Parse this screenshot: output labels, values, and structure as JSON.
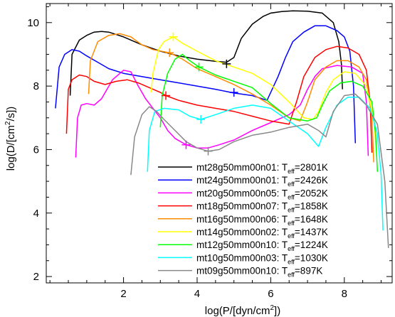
{
  "chart_data": {
    "type": "line",
    "xlabel_main": "log(P/[dyn/cm",
    "xlabel_sup": "2",
    "xlabel_end": "])",
    "ylabel_main": "log(D/[cm",
    "ylabel_sup": "2",
    "ylabel_end": "/s])",
    "xlim": [
      -0.1,
      9.3
    ],
    "ylim": [
      1.8,
      10.6
    ],
    "xticks": [
      2,
      4,
      6,
      8
    ],
    "yticks": [
      2,
      4,
      6,
      8,
      10
    ],
    "grid": false,
    "legend_placement": "bottom-right",
    "series": [
      {
        "name": "mt28g50mm00n01",
        "teff": "2801K",
        "color": "#000000",
        "marker": [
          4.8,
          8.7
        ],
        "points": [
          [
            0.55,
            7.7
          ],
          [
            0.6,
            9.0
          ],
          [
            0.8,
            9.45
          ],
          [
            1.0,
            9.6
          ],
          [
            1.2,
            9.7
          ],
          [
            1.4,
            9.72
          ],
          [
            1.6,
            9.7
          ],
          [
            2.0,
            9.55
          ],
          [
            2.5,
            9.3
          ],
          [
            3.0,
            9.1
          ],
          [
            3.5,
            8.95
          ],
          [
            4.0,
            8.85
          ],
          [
            4.5,
            8.78
          ],
          [
            4.8,
            8.75
          ],
          [
            5.0,
            8.9
          ],
          [
            5.2,
            9.5
          ],
          [
            5.5,
            9.95
          ],
          [
            5.8,
            10.2
          ],
          [
            6.0,
            10.3
          ],
          [
            6.3,
            10.35
          ],
          [
            6.6,
            10.37
          ],
          [
            7.0,
            10.36
          ],
          [
            7.4,
            10.3
          ],
          [
            7.7,
            10.0
          ],
          [
            7.85,
            9.4
          ],
          [
            7.92,
            8.7
          ],
          [
            7.95,
            7.9
          ]
        ]
      },
      {
        "name": "mt24g50mm00n01",
        "teff": "2426K",
        "color": "#0000ff",
        "marker": [
          5.0,
          7.8
        ],
        "points": [
          [
            0.15,
            7.3
          ],
          [
            0.25,
            8.6
          ],
          [
            0.4,
            9.0
          ],
          [
            0.6,
            9.15
          ],
          [
            0.8,
            9.1
          ],
          [
            1.0,
            8.95
          ],
          [
            1.3,
            8.75
          ],
          [
            1.6,
            8.55
          ],
          [
            2.0,
            8.4
          ],
          [
            2.5,
            8.3
          ],
          [
            3.0,
            8.2
          ],
          [
            3.5,
            8.1
          ],
          [
            4.0,
            8.0
          ],
          [
            4.5,
            7.9
          ],
          [
            5.0,
            7.78
          ],
          [
            5.5,
            7.7
          ],
          [
            5.9,
            7.55
          ],
          [
            6.2,
            8.3
          ],
          [
            6.4,
            8.9
          ],
          [
            6.6,
            9.4
          ],
          [
            6.9,
            9.7
          ],
          [
            7.2,
            9.9
          ],
          [
            7.5,
            9.9
          ],
          [
            7.8,
            9.75
          ],
          [
            8.0,
            9.55
          ],
          [
            8.15,
            9.1
          ],
          [
            8.25,
            8.0
          ],
          [
            8.3,
            6.2
          ]
        ]
      },
      {
        "name": "mt20g50mm00n05",
        "teff": "2052K",
        "color": "#ff00ff",
        "marker": [
          3.7,
          6.15
        ],
        "points": [
          [
            0.7,
            5.75
          ],
          [
            0.75,
            7.0
          ],
          [
            0.85,
            7.4
          ],
          [
            1.0,
            7.45
          ],
          [
            1.2,
            7.4
          ],
          [
            1.4,
            7.6
          ],
          [
            1.7,
            8.2
          ],
          [
            2.0,
            8.5
          ],
          [
            2.2,
            8.45
          ],
          [
            2.4,
            8.0
          ],
          [
            2.6,
            7.6
          ],
          [
            2.8,
            7.3
          ],
          [
            3.0,
            7.0
          ],
          [
            3.2,
            6.6
          ],
          [
            3.4,
            6.35
          ],
          [
            3.7,
            6.15
          ],
          [
            4.0,
            6.05
          ],
          [
            4.3,
            6.05
          ],
          [
            4.6,
            6.15
          ],
          [
            5.0,
            6.3
          ],
          [
            5.5,
            6.6
          ],
          [
            6.0,
            6.85
          ],
          [
            6.5,
            7.1
          ],
          [
            6.8,
            7.4
          ],
          [
            7.0,
            7.9
          ],
          [
            7.2,
            8.3
          ],
          [
            7.4,
            8.55
          ],
          [
            7.8,
            8.65
          ],
          [
            8.2,
            8.6
          ],
          [
            8.5,
            8.4
          ],
          [
            8.6,
            7.5
          ],
          [
            8.65,
            5.8
          ]
        ]
      },
      {
        "name": "mt18g50mm00n07",
        "teff": "1858K",
        "color": "#ff0000",
        "marker": [
          3.15,
          7.7
        ],
        "points": [
          [
            0.45,
            6.5
          ],
          [
            0.5,
            7.9
          ],
          [
            0.6,
            8.2
          ],
          [
            0.8,
            8.35
          ],
          [
            1.0,
            8.3
          ],
          [
            1.2,
            8.15
          ],
          [
            1.5,
            8.05
          ],
          [
            1.8,
            8.15
          ],
          [
            2.1,
            8.2
          ],
          [
            2.4,
            8.1
          ],
          [
            2.7,
            7.95
          ],
          [
            3.0,
            7.8
          ],
          [
            3.15,
            7.7
          ],
          [
            3.5,
            7.55
          ],
          [
            4.0,
            7.4
          ],
          [
            4.5,
            7.3
          ],
          [
            5.0,
            7.2
          ],
          [
            5.5,
            7.05
          ],
          [
            6.0,
            6.9
          ],
          [
            6.5,
            6.8
          ],
          [
            6.7,
            7.5
          ],
          [
            6.9,
            8.3
          ],
          [
            7.2,
            8.9
          ],
          [
            7.5,
            9.15
          ],
          [
            7.8,
            9.25
          ],
          [
            8.1,
            9.2
          ],
          [
            8.4,
            9.0
          ],
          [
            8.6,
            8.5
          ],
          [
            8.7,
            7.5
          ],
          [
            8.75,
            5.9
          ]
        ]
      },
      {
        "name": "mt16g50mm00n06",
        "teff": "1648K",
        "color": "#ff8c00",
        "marker": [
          3.25,
          9.05
        ],
        "points": [
          [
            1.05,
            7.75
          ],
          [
            1.1,
            8.8
          ],
          [
            1.3,
            9.4
          ],
          [
            1.6,
            9.6
          ],
          [
            1.9,
            9.65
          ],
          [
            2.2,
            9.55
          ],
          [
            2.5,
            9.3
          ],
          [
            2.8,
            9.15
          ],
          [
            3.25,
            9.05
          ],
          [
            3.6,
            8.85
          ],
          [
            4.0,
            8.55
          ],
          [
            4.5,
            8.3
          ],
          [
            5.0,
            8.05
          ],
          [
            5.5,
            7.75
          ],
          [
            6.0,
            7.4
          ],
          [
            6.5,
            7.0
          ],
          [
            6.8,
            6.9
          ],
          [
            7.0,
            7.5
          ],
          [
            7.2,
            8.2
          ],
          [
            7.5,
            8.6
          ],
          [
            7.8,
            8.8
          ],
          [
            8.1,
            8.8
          ],
          [
            8.4,
            8.6
          ],
          [
            8.6,
            8.2
          ],
          [
            8.75,
            7.0
          ],
          [
            8.8,
            5.6
          ]
        ]
      },
      {
        "name": "mt14g50mm00n02",
        "teff": "1437K",
        "color": "#ffff00",
        "marker": [
          3.35,
          9.55
        ],
        "points": [
          [
            2.75,
            7.8
          ],
          [
            2.8,
            8.4
          ],
          [
            2.95,
            9.15
          ],
          [
            3.1,
            9.4
          ],
          [
            3.35,
            9.55
          ],
          [
            3.6,
            9.35
          ],
          [
            4.0,
            9.1
          ],
          [
            4.5,
            8.8
          ],
          [
            5.0,
            8.6
          ],
          [
            5.5,
            8.4
          ],
          [
            6.0,
            8.05
          ],
          [
            6.5,
            7.5
          ],
          [
            6.9,
            7.0
          ],
          [
            7.15,
            6.95
          ],
          [
            7.3,
            7.2
          ],
          [
            7.5,
            7.8
          ],
          [
            7.7,
            8.2
          ],
          [
            8.0,
            8.45
          ],
          [
            8.3,
            8.4
          ],
          [
            8.6,
            8.0
          ],
          [
            8.8,
            7.0
          ],
          [
            8.88,
            5.8
          ]
        ]
      },
      {
        "name": "mt12g50mm00n10",
        "teff": "1224K",
        "color": "#00ff00",
        "marker": [
          4.05,
          8.6
        ],
        "points": [
          [
            3.0,
            6.7
          ],
          [
            3.05,
            7.7
          ],
          [
            3.2,
            8.4
          ],
          [
            3.4,
            8.85
          ],
          [
            3.6,
            9.0
          ],
          [
            3.8,
            8.8
          ],
          [
            4.05,
            8.6
          ],
          [
            4.5,
            8.35
          ],
          [
            5.0,
            8.15
          ],
          [
            5.5,
            7.95
          ],
          [
            6.0,
            7.45
          ],
          [
            6.5,
            7.0
          ],
          [
            7.0,
            6.9
          ],
          [
            7.25,
            7.0
          ],
          [
            7.4,
            7.4
          ],
          [
            7.6,
            7.85
          ],
          [
            7.9,
            8.1
          ],
          [
            8.2,
            8.15
          ],
          [
            8.5,
            8.0
          ],
          [
            8.75,
            7.5
          ],
          [
            8.85,
            6.5
          ],
          [
            8.9,
            5.3
          ]
        ]
      },
      {
        "name": "mt10g50mm00n03",
        "teff": "1030K",
        "color": "#00ffff",
        "marker": [
          4.1,
          6.95
        ],
        "points": [
          [
            2.65,
            5.3
          ],
          [
            2.7,
            6.6
          ],
          [
            2.85,
            7.2
          ],
          [
            3.1,
            7.3
          ],
          [
            3.5,
            7.25
          ],
          [
            3.8,
            7.05
          ],
          [
            4.1,
            6.95
          ],
          [
            4.5,
            7.1
          ],
          [
            5.0,
            7.3
          ],
          [
            5.5,
            7.4
          ],
          [
            6.0,
            7.3
          ],
          [
            6.5,
            6.9
          ],
          [
            7.0,
            6.5
          ],
          [
            7.3,
            6.1
          ],
          [
            7.5,
            6.7
          ],
          [
            7.8,
            7.4
          ],
          [
            8.1,
            7.65
          ],
          [
            8.4,
            7.65
          ],
          [
            8.7,
            7.3
          ],
          [
            8.9,
            6.5
          ],
          [
            9.0,
            5.2
          ],
          [
            9.05,
            3.45
          ]
        ]
      },
      {
        "name": "mt09g50mm00n10",
        "teff": "897K",
        "color": "#888888",
        "marker": [
          4.3,
          5.95
        ],
        "points": [
          [
            2.2,
            5.2
          ],
          [
            2.3,
            6.4
          ],
          [
            2.5,
            7.1
          ],
          [
            2.7,
            7.35
          ],
          [
            2.9,
            7.2
          ],
          [
            3.1,
            6.95
          ],
          [
            3.4,
            6.6
          ],
          [
            3.7,
            6.25
          ],
          [
            4.0,
            6.05
          ],
          [
            4.3,
            5.95
          ],
          [
            4.6,
            6.0
          ],
          [
            5.0,
            6.25
          ],
          [
            5.5,
            6.45
          ],
          [
            6.0,
            6.55
          ],
          [
            6.5,
            6.7
          ],
          [
            7.0,
            6.8
          ],
          [
            7.3,
            6.6
          ],
          [
            7.5,
            6.4
          ],
          [
            7.7,
            7.2
          ],
          [
            8.0,
            7.7
          ],
          [
            8.3,
            7.75
          ],
          [
            8.6,
            7.4
          ],
          [
            8.9,
            6.8
          ],
          [
            9.1,
            5.0
          ],
          [
            9.2,
            2.9
          ]
        ]
      }
    ]
  }
}
